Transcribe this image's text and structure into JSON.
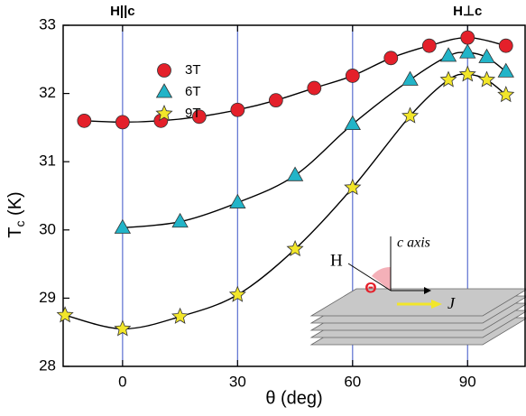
{
  "chart_data": {
    "type": "scatter",
    "ylabel_main": "T",
    "ylabel_sub": "c",
    "ylabel_unit": " (K)",
    "xlabel": "θ (deg)",
    "annotations": [
      "H||c",
      "H⊥c"
    ],
    "inset_labels": [
      "H",
      "Θ",
      "c axis",
      "J"
    ],
    "xlim": [
      -15.5,
      105
    ],
    "ylim": [
      28,
      33
    ],
    "xticks": [
      0,
      30,
      60,
      90
    ],
    "yticks": [
      28,
      29,
      30,
      31,
      32,
      33
    ],
    "grid": true,
    "grid_color": "#5b6fd0",
    "legend": "upper left",
    "fit_curves": true,
    "series": [
      {
        "name": "3T",
        "color": "#e4202a",
        "marker": "circle",
        "x": [
          -10,
          0,
          10,
          20,
          30,
          40,
          50,
          60,
          70,
          80,
          90,
          100
        ],
        "values": [
          31.6,
          31.58,
          31.6,
          31.66,
          31.76,
          31.9,
          32.08,
          32.26,
          32.52,
          32.7,
          32.82,
          32.7
        ]
      },
      {
        "name": "6T",
        "color": "#22b4c8",
        "marker": "triangle",
        "x": [
          0,
          15,
          30,
          45,
          60,
          75,
          85,
          90,
          95,
          100
        ],
        "values": [
          30.03,
          30.12,
          30.4,
          30.8,
          31.55,
          32.2,
          32.55,
          32.6,
          32.53,
          32.32
        ]
      },
      {
        "name": "9T",
        "color": "#f2e62a",
        "marker": "star",
        "x": [
          -15,
          0,
          15,
          30,
          45,
          60,
          75,
          85,
          90,
          95,
          100
        ],
        "values": [
          28.75,
          28.55,
          28.73,
          29.05,
          29.72,
          30.62,
          31.67,
          32.2,
          32.28,
          32.2,
          31.98
        ]
      }
    ]
  }
}
